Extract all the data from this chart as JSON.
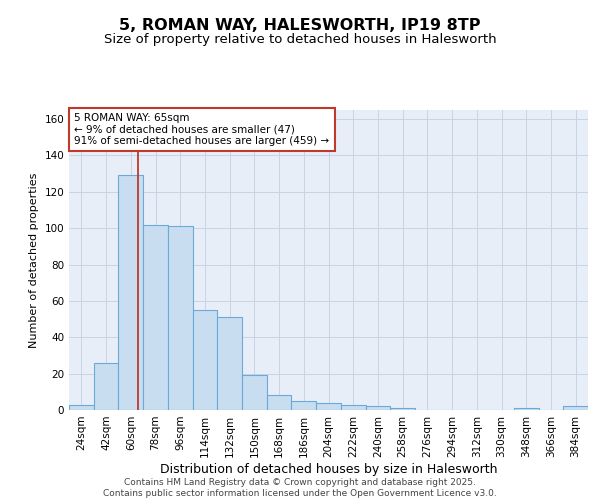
{
  "title": "5, ROMAN WAY, HALESWORTH, IP19 8TP",
  "subtitle": "Size of property relative to detached houses in Halesworth",
  "xlabel": "Distribution of detached houses by size in Halesworth",
  "ylabel": "Number of detached properties",
  "categories": [
    "24sqm",
    "42sqm",
    "60sqm",
    "78sqm",
    "96sqm",
    "114sqm",
    "132sqm",
    "150sqm",
    "168sqm",
    "186sqm",
    "204sqm",
    "222sqm",
    "240sqm",
    "258sqm",
    "276sqm",
    "294sqm",
    "312sqm",
    "330sqm",
    "348sqm",
    "366sqm",
    "384sqm"
  ],
  "values": [
    3,
    26,
    129,
    102,
    101,
    55,
    51,
    19,
    8,
    5,
    4,
    3,
    2,
    1,
    0,
    0,
    0,
    0,
    1,
    0,
    2
  ],
  "bar_color": "#c9ddf0",
  "bar_edge_color": "#6aaad8",
  "bar_edge_width": 0.8,
  "grid_color": "#c8d4e4",
  "bg_color": "#e8eef8",
  "vline_color": "#c0392b",
  "annotation_text": "5 ROMAN WAY: 65sqm\n← 9% of detached houses are smaller (47)\n91% of semi-detached houses are larger (459) →",
  "annotation_box_color": "white",
  "annotation_box_edge": "#c0392b",
  "ylim": [
    0,
    165
  ],
  "yticks": [
    0,
    20,
    40,
    60,
    80,
    100,
    120,
    140,
    160
  ],
  "footer": "Contains HM Land Registry data © Crown copyright and database right 2025.\nContains public sector information licensed under the Open Government Licence v3.0.",
  "title_fontsize": 11.5,
  "subtitle_fontsize": 9.5,
  "xlabel_fontsize": 9,
  "ylabel_fontsize": 8,
  "tick_fontsize": 7.5,
  "annotation_fontsize": 7.5,
  "footer_fontsize": 6.5
}
